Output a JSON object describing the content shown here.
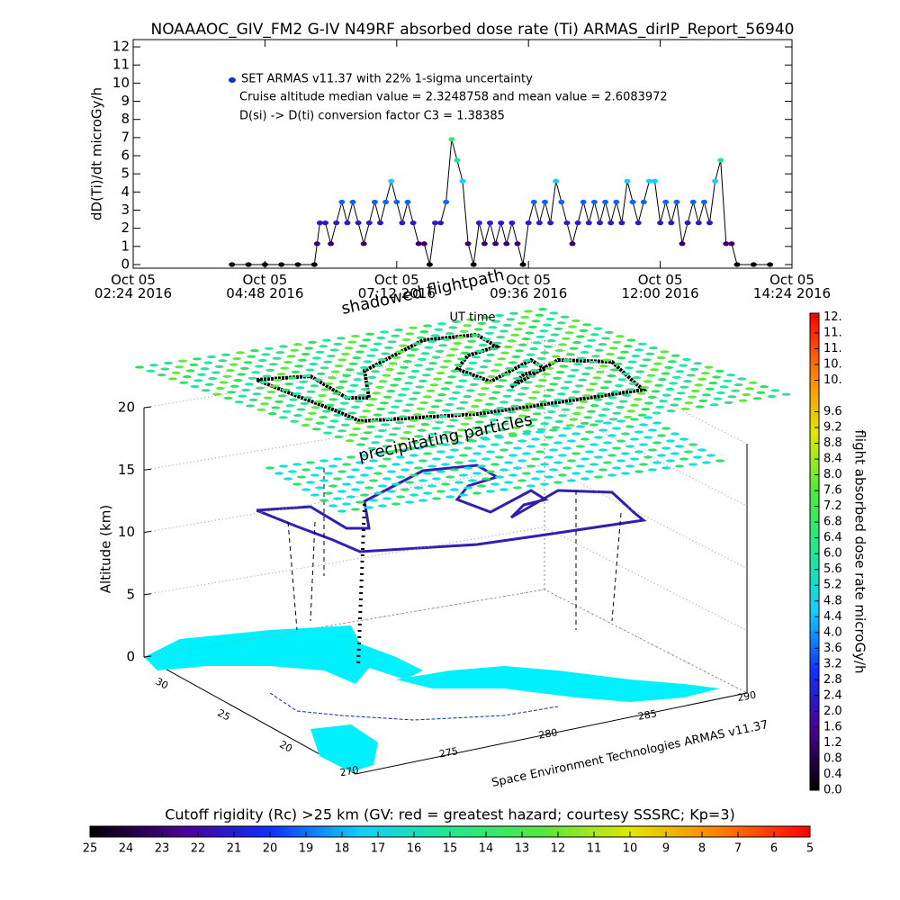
{
  "chart_data": [
    {
      "type": "line",
      "title": "NOAAAOC_GIV_FM2 G-IV   N49RF  absorbed dose rate (Ti) ARMAS_dirIP_Report_56940",
      "y_label": "dD(Ti)/dt microGy/h",
      "x_label": "UT time",
      "legend": "SET ARMAS v11.37 with 22% 1-sigma uncertainty",
      "annotations": [
        "Cruise altitude median value = 2.3248758 and mean value = 2.6083972",
        "D(si) -> D(ti) conversion factor C3 = 1.38385"
      ],
      "xlim": [
        2.4,
        14.4
      ],
      "xticks": [
        {
          "value": 2.4,
          "label": "Oct 05\n02:24 2016"
        },
        {
          "value": 4.8,
          "label": "Oct 05\n04:48 2016"
        },
        {
          "value": 7.2,
          "label": "Oct 05\n07:12 2016"
        },
        {
          "value": 9.6,
          "label": "Oct 05\n09:36 2016"
        },
        {
          "value": 12.0,
          "label": "Oct 05\n12:00 2016"
        },
        {
          "value": 14.4,
          "label": "Oct 05\n14:24 2016"
        }
      ],
      "ylim": [
        -0.2,
        12.4
      ],
      "yticks": [
        0,
        1,
        2,
        3,
        4,
        5,
        6,
        7,
        8,
        9,
        10,
        11,
        12
      ],
      "line_color": "#000000",
      "legend_color": "#1030d0",
      "color_scale": [
        0,
        12
      ],
      "colormap": [
        "#000000",
        "#4a0090",
        "#1030ff",
        "#10d0ff",
        "#20e890",
        "#50e840",
        "#e0e800",
        "#ff8000",
        "#ff0000"
      ],
      "x": [
        4.2,
        4.5,
        4.8,
        5.1,
        5.4,
        5.7,
        5.75,
        5.8,
        5.9,
        6.0,
        6.1,
        6.2,
        6.3,
        6.4,
        6.5,
        6.6,
        6.7,
        6.8,
        6.9,
        7.0,
        7.1,
        7.2,
        7.3,
        7.4,
        7.5,
        7.6,
        7.7,
        7.8,
        7.9,
        8.0,
        8.1,
        8.2,
        8.3,
        8.4,
        8.5,
        8.6,
        8.7,
        8.8,
        8.9,
        9.0,
        9.1,
        9.2,
        9.3,
        9.4,
        9.5,
        9.6,
        9.7,
        9.8,
        9.9,
        10.0,
        10.1,
        10.2,
        10.3,
        10.4,
        10.5,
        10.6,
        10.7,
        10.8,
        10.9,
        11.0,
        11.1,
        11.2,
        11.3,
        11.4,
        11.5,
        11.6,
        11.7,
        11.8,
        11.9,
        12.0,
        12.1,
        12.2,
        12.3,
        12.4,
        12.5,
        12.6,
        12.7,
        12.8,
        12.9,
        13.0,
        13.1,
        13.2,
        13.3,
        13.4,
        13.7,
        14.0
      ],
      "values": [
        0,
        0,
        0,
        0,
        0,
        0,
        1.15,
        2.3,
        2.3,
        1.15,
        2.3,
        3.45,
        2.3,
        3.45,
        2.3,
        1.15,
        2.3,
        3.45,
        2.3,
        3.45,
        4.6,
        3.45,
        2.3,
        3.45,
        2.3,
        1.15,
        1.15,
        0,
        2.3,
        2.3,
        3.45,
        6.9,
        5.75,
        4.6,
        1.15,
        0,
        2.3,
        1.15,
        2.3,
        1.15,
        2.3,
        1.15,
        2.3,
        1.15,
        0,
        2.3,
        3.45,
        2.3,
        3.45,
        2.3,
        4.6,
        3.45,
        2.3,
        1.15,
        2.3,
        3.45,
        2.3,
        3.45,
        2.3,
        3.45,
        2.3,
        3.45,
        2.3,
        4.6,
        3.45,
        2.3,
        3.45,
        4.6,
        4.6,
        2.3,
        3.45,
        2.3,
        3.45,
        1.15,
        2.3,
        3.45,
        2.3,
        3.45,
        2.3,
        4.6,
        5.75,
        1.15,
        1.15,
        0,
        0,
        0
      ]
    },
    {
      "type": "surface3d",
      "annotations": [
        "shadowed flightpath",
        "precipitating particles"
      ],
      "credit": "Space Environment Technologies ARMAS v11.37",
      "z_label": "Altitude (km)",
      "zlim": [
        0,
        20
      ],
      "zticks": [
        0,
        5,
        10,
        15,
        20
      ],
      "latlim": [
        32,
        18
      ],
      "latticks": [
        30,
        25,
        20
      ],
      "lonlim": [
        268,
        292
      ],
      "lonticks": [
        270,
        275,
        280,
        285,
        290
      ]
    },
    {
      "type": "colorbar",
      "orientation": "vertical",
      "label": "flight absorbed dose rate microGy/h",
      "ylim": [
        0,
        12.1
      ],
      "colormap": [
        "#000000",
        "#4a0090",
        "#1030ff",
        "#10d0ff",
        "#20e890",
        "#50e840",
        "#e0e800",
        "#ff8000",
        "#ff0000"
      ],
      "yticks": [
        {
          "value": 0,
          "label": "0.0"
        },
        {
          "value": 0.4,
          "label": "0.4"
        },
        {
          "value": 0.8,
          "label": "0.8"
        },
        {
          "value": 1.2,
          "label": "1.2"
        },
        {
          "value": 1.6,
          "label": "1.6"
        },
        {
          "value": 2,
          "label": "2.0"
        },
        {
          "value": 2.4,
          "label": "2.4"
        },
        {
          "value": 2.8,
          "label": "2.8"
        },
        {
          "value": 3.2,
          "label": "3.2"
        },
        {
          "value": 3.6,
          "label": "3.6"
        },
        {
          "value": 4,
          "label": "4.0"
        },
        {
          "value": 4.4,
          "label": "4.4"
        },
        {
          "value": 4.8,
          "label": "4.8"
        },
        {
          "value": 5.2,
          "label": "5.2"
        },
        {
          "value": 5.6,
          "label": "5.6"
        },
        {
          "value": 6,
          "label": "6.0"
        },
        {
          "value": 6.4,
          "label": "6.4"
        },
        {
          "value": 6.8,
          "label": "6.8"
        },
        {
          "value": 7.2,
          "label": "7.2"
        },
        {
          "value": 7.6,
          "label": "7.6"
        },
        {
          "value": 8,
          "label": "8.0"
        },
        {
          "value": 8.4,
          "label": "8.4"
        },
        {
          "value": 8.8,
          "label": "8.8"
        },
        {
          "value": 9.2,
          "label": "9.2"
        },
        {
          "value": 9.6,
          "label": "9.6"
        },
        {
          "value": 10.4,
          "label": "10."
        },
        {
          "value": 10.8,
          "label": "10."
        },
        {
          "value": 11.2,
          "label": "11."
        },
        {
          "value": 11.6,
          "label": "11."
        },
        {
          "value": 12,
          "label": "12."
        }
      ]
    },
    {
      "type": "colorbar",
      "orientation": "horizontal",
      "title": "Cutoff rigidity (Rc) >25 km (GV: red = greatest hazard; courtesy SSSRC; Kp=3)",
      "xlim": [
        25,
        5
      ],
      "colormap": [
        "#000000",
        "#4a0090",
        "#1030ff",
        "#10d0ff",
        "#20e890",
        "#50e840",
        "#e0e800",
        "#ff8000",
        "#ff0000"
      ],
      "xticks": [
        25,
        24,
        23,
        22,
        21,
        20,
        19,
        18,
        17,
        16,
        15,
        14,
        13,
        12,
        11,
        10,
        9,
        8,
        7,
        6,
        5
      ]
    }
  ]
}
